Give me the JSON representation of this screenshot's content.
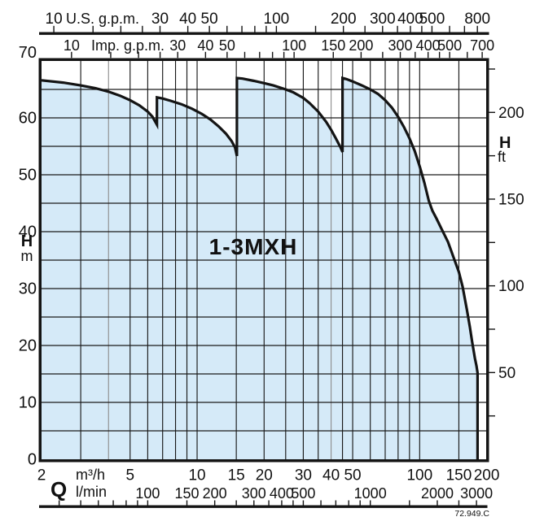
{
  "figure": {
    "family_label": "1-3MXH",
    "drawing_code": "72.949.C"
  },
  "colors": {
    "background": "#ffffff",
    "envelope_fill": "#d5eaf8",
    "line": "#141414",
    "grid": "#1a1a1a",
    "grid_light": "#909090"
  },
  "chart_data": {
    "type": "area",
    "title": "1-3MXH pump family operating range envelope",
    "x_scale": "log",
    "x_range_m3h": [
      2,
      200
    ],
    "y_range_m": [
      0,
      70
    ],
    "grid": {
      "x_m3h": [
        3,
        4,
        5,
        6,
        7,
        8,
        9,
        10,
        15,
        20,
        25,
        30,
        35,
        40,
        45,
        50,
        60,
        70,
        80,
        90,
        100,
        150
      ],
      "x_gray": [
        4,
        40
      ],
      "y_m": [
        5,
        10,
        15,
        20,
        25,
        30,
        35,
        40,
        45,
        50,
        55,
        60,
        65
      ]
    },
    "axes": {
      "us_gpm": {
        "title": "U.S. g.p.m.",
        "labels": [
          10,
          30,
          40,
          50,
          100,
          200,
          300,
          400,
          500,
          800
        ],
        "ticks": [
          10,
          15,
          20,
          25,
          30,
          40,
          50,
          60,
          70,
          80,
          90,
          100,
          150,
          200,
          250,
          300,
          350,
          400,
          450,
          500,
          600,
          700,
          800
        ],
        "gpm_per_m3h": 4.4029
      },
      "imp_gpm": {
        "title": "Imp. g.p.m.",
        "labels": [
          10,
          30,
          40,
          50,
          100,
          150,
          200,
          300,
          400,
          500,
          700
        ],
        "ticks": [
          10,
          15,
          20,
          25,
          30,
          40,
          50,
          60,
          70,
          80,
          90,
          100,
          150,
          200,
          250,
          300,
          350,
          400,
          450,
          500,
          600,
          700
        ],
        "gpm_per_m3h": 3.6661
      },
      "m3h": {
        "axis_letter": "Q",
        "unit": "m³/h",
        "labels": [
          2,
          5,
          10,
          15,
          20,
          30,
          40,
          50,
          100,
          150,
          200
        ]
      },
      "lmin": {
        "unit": "l/min",
        "labels": [
          100,
          150,
          200,
          300,
          400,
          500,
          1000,
          2000,
          3000
        ],
        "ticks": [
          40,
          50,
          60,
          70,
          80,
          90,
          100,
          150,
          200,
          250,
          300,
          350,
          400,
          450,
          500,
          600,
          700,
          800,
          900,
          1000,
          1500,
          2000,
          2500,
          3000
        ],
        "lmin_per_m3h": 16.667
      },
      "h_m": {
        "axis_letter": "H",
        "unit": "m",
        "labels": [
          0,
          10,
          20,
          30,
          40,
          50,
          60,
          70
        ]
      },
      "h_ft": {
        "axis_letter": "H",
        "unit": "ft",
        "labels": [
          50,
          100,
          150,
          200
        ],
        "ticks": [
          25,
          50,
          75,
          100,
          125,
          150,
          175,
          200,
          225
        ],
        "m_per_ft": 0.3048
      }
    },
    "envelope_points_q_h": [
      [
        2,
        66.6
      ],
      [
        2.5,
        66.2
      ],
      [
        3,
        65.7
      ],
      [
        3.5,
        65.2
      ],
      [
        4,
        64.6
      ],
      [
        4.5,
        63.9
      ],
      [
        5,
        63.1
      ],
      [
        5.5,
        62.2
      ],
      [
        6,
        61.1
      ],
      [
        6.3,
        60.2
      ],
      [
        6.6,
        58.8
      ],
      [
        6.6,
        63.6
      ],
      [
        7,
        63.4
      ],
      [
        7.6,
        63.0
      ],
      [
        8.5,
        62.4
      ],
      [
        9.5,
        61.6
      ],
      [
        10.5,
        60.7
      ],
      [
        11.5,
        59.7
      ],
      [
        12.5,
        58.5
      ],
      [
        13.5,
        57.2
      ],
      [
        14.3,
        55.9
      ],
      [
        14.8,
        54.8
      ],
      [
        15.1,
        53.3
      ],
      [
        15.1,
        67.0
      ],
      [
        16,
        66.9
      ],
      [
        18,
        66.5
      ],
      [
        20,
        66.1
      ],
      [
        22,
        65.7
      ],
      [
        25,
        65.0
      ],
      [
        27,
        64.5
      ],
      [
        30,
        63.5
      ],
      [
        32,
        62.6
      ],
      [
        35,
        61.1
      ],
      [
        38,
        59.3
      ],
      [
        40,
        57.9
      ],
      [
        42,
        56.4
      ],
      [
        44,
        54.9
      ],
      [
        45,
        54.0
      ],
      [
        45,
        67.0
      ],
      [
        47,
        66.8
      ],
      [
        50,
        66.4
      ],
      [
        55,
        65.7
      ],
      [
        60,
        65.0
      ],
      [
        65,
        64.2
      ],
      [
        70,
        63.1
      ],
      [
        75,
        61.8
      ],
      [
        80,
        60.2
      ],
      [
        85,
        58.4
      ],
      [
        90,
        56.4
      ],
      [
        95,
        54.2
      ],
      [
        100,
        51.5
      ],
      [
        105,
        48.6
      ],
      [
        110,
        45.4
      ],
      [
        114,
        43.7
      ],
      [
        119,
        42.3
      ],
      [
        125,
        40.6
      ],
      [
        134,
        38.2
      ],
      [
        142,
        35.5
      ],
      [
        150,
        32.9
      ],
      [
        156,
        30.3
      ],
      [
        163,
        26.3
      ],
      [
        168,
        23.3
      ],
      [
        172,
        20.7
      ],
      [
        177,
        17.8
      ],
      [
        180,
        16.4
      ],
      [
        182,
        15.2
      ],
      [
        182,
        0
      ]
    ]
  }
}
